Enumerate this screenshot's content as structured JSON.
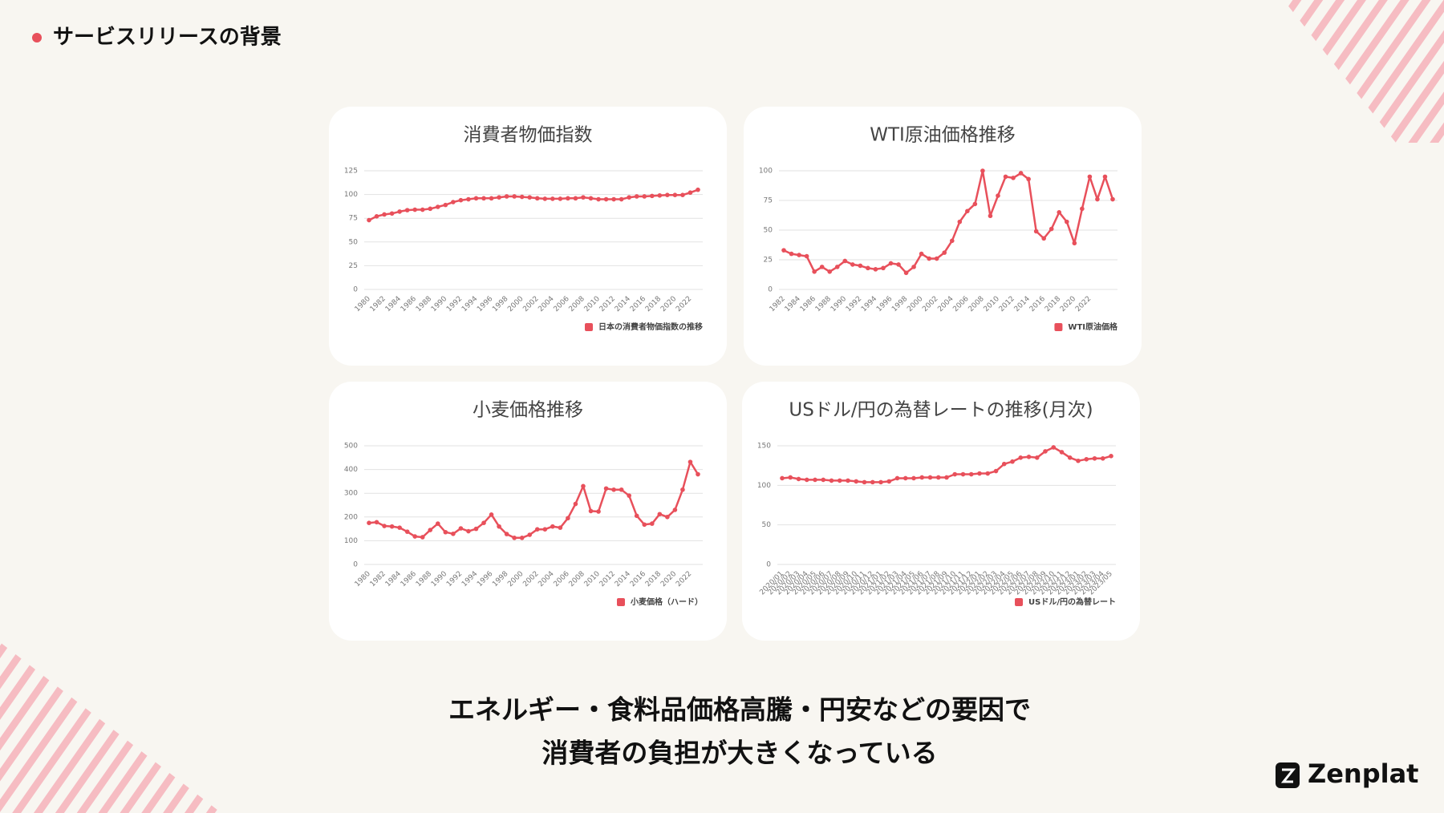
{
  "header": {
    "title": "サービスリリースの背景"
  },
  "message": {
    "lines": [
      "エネルギー・食料品価格高騰・円安などの要因で",
      "消費者の負担が大きくなっている"
    ]
  },
  "logo": {
    "text": "Zenplat"
  },
  "chart_data": [
    {
      "type": "line",
      "title": "消費者物価指数",
      "legend": "bottom-right",
      "categories": [
        "1980",
        null,
        "1982",
        null,
        "1984",
        null,
        "1986",
        null,
        "1988",
        null,
        "1990",
        null,
        "1992",
        null,
        "1994",
        null,
        "1996",
        null,
        "1998",
        null,
        "2000",
        null,
        "2002",
        null,
        "2004",
        null,
        "2006",
        null,
        "2008",
        null,
        "2010",
        null,
        "2012",
        null,
        "2014",
        null,
        "2016",
        null,
        "2018",
        null,
        "2020",
        null,
        "2022",
        null
      ],
      "series": [
        {
          "name": "日本の消費者物価指数の推移",
          "color": "#e8505b",
          "values": [
            73,
            77,
            79,
            80,
            82,
            83.5,
            84,
            84,
            85,
            87,
            89,
            92,
            94,
            95,
            96,
            96,
            96,
            97,
            98,
            98,
            97.5,
            97,
            96,
            95.5,
            95.5,
            95.5,
            96,
            96,
            97,
            96,
            95,
            95,
            95,
            95,
            97,
            98,
            98,
            98.5,
            99,
            99.5,
            99.5,
            99.5,
            102,
            105
          ]
        }
      ],
      "ylim": [
        0,
        125
      ],
      "yticks": [
        0,
        25,
        50,
        75,
        100,
        125
      ],
      "grid": true
    },
    {
      "type": "line",
      "title": "WTI原油価格推移",
      "legend": "bottom-right",
      "categories": [
        "1982",
        null,
        "1984",
        null,
        "1986",
        null,
        "1988",
        null,
        "1990",
        null,
        "1992",
        null,
        "1994",
        null,
        "1996",
        null,
        "1998",
        null,
        "2000",
        null,
        "2002",
        null,
        "2004",
        null,
        "2006",
        null,
        "2008",
        null,
        "2010",
        null,
        "2012",
        null,
        "2014",
        null,
        "2016",
        null,
        "2018",
        null,
        "2020",
        null,
        "2022",
        null,
        null,
        null
      ],
      "series": [
        {
          "name": "WTI原油価格",
          "color": "#e8505b",
          "values": [
            33,
            30,
            29,
            28,
            15,
            19,
            15,
            19,
            24,
            21,
            20,
            18,
            17,
            18,
            22,
            21,
            14,
            19,
            30,
            26,
            26,
            31,
            41,
            57,
            66,
            72,
            100,
            62,
            79,
            95,
            94,
            98,
            93,
            49,
            43,
            51,
            65,
            57,
            39,
            68,
            95,
            76,
            95,
            76
          ]
        }
      ],
      "ylim": [
        0,
        100
      ],
      "yticks": [
        0,
        25,
        50,
        75,
        100
      ],
      "grid": true
    },
    {
      "type": "line",
      "title": "小麦価格推移",
      "legend": "bottom-right",
      "categories": [
        "1980",
        null,
        "1982",
        null,
        "1984",
        null,
        "1986",
        null,
        "1988",
        null,
        "1990",
        null,
        "1992",
        null,
        "1994",
        null,
        "1996",
        null,
        "1998",
        null,
        "2000",
        null,
        "2002",
        null,
        "2004",
        null,
        "2006",
        null,
        "2008",
        null,
        "2010",
        null,
        "2012",
        null,
        "2014",
        null,
        "2016",
        null,
        "2018",
        null,
        "2020",
        null,
        "2022",
        null
      ],
      "series": [
        {
          "name": "小麦価格（ハード）",
          "color": "#e8505b",
          "values": [
            175,
            178,
            162,
            160,
            155,
            138,
            118,
            115,
            145,
            172,
            136,
            129,
            152,
            140,
            150,
            175,
            210,
            160,
            128,
            112,
            112,
            125,
            148,
            148,
            160,
            155,
            195,
            255,
            330,
            225,
            223,
            320,
            315,
            315,
            290,
            205,
            168,
            172,
            212,
            200,
            230,
            315,
            432,
            380
          ]
        }
      ],
      "ylim": [
        0,
        500
      ],
      "yticks": [
        0,
        100,
        200,
        300,
        400,
        500
      ],
      "grid": true
    },
    {
      "type": "line",
      "title": "USドル/円の為替レートの推移(月次)",
      "legend": "bottom-right",
      "categories": [
        "2020/01",
        "2020/02",
        "2020/03",
        "2020/04",
        "2020/05",
        "2020/06",
        "2020/07",
        "2020/08",
        "2020/09",
        "2020/10",
        "2020/11",
        "2020/12",
        "2021/01",
        "2021/02",
        "2021/03",
        "2021/04",
        "2021/05",
        "2021/06",
        "2021/07",
        "2021/08",
        "2021/09",
        "2021/10",
        "2021/11",
        "2021/12",
        "2022/01",
        "2022/02",
        "2022/03",
        "2022/04",
        "2022/05",
        "2022/06",
        "2022/07",
        "2022/08",
        "2022/09",
        "2022/10",
        "2022/11",
        "2022/12",
        "2023/01",
        "2023/02",
        "2023/03",
        "2023/04",
        "2023/05"
      ],
      "series": [
        {
          "name": "USドル/円の為替レート",
          "color": "#e8505b",
          "values": [
            109,
            110,
            108,
            107,
            107,
            107,
            106,
            106,
            106,
            105,
            104,
            104,
            104,
            105,
            109,
            109,
            109,
            110,
            110,
            110,
            110,
            114,
            114,
            114,
            115,
            115,
            118,
            127,
            130,
            135,
            136,
            135,
            143,
            148,
            142,
            135,
            131,
            133,
            134,
            134,
            137
          ]
        }
      ],
      "ylim": [
        0,
        150
      ],
      "yticks": [
        0,
        50,
        100,
        150
      ],
      "grid": true
    }
  ]
}
